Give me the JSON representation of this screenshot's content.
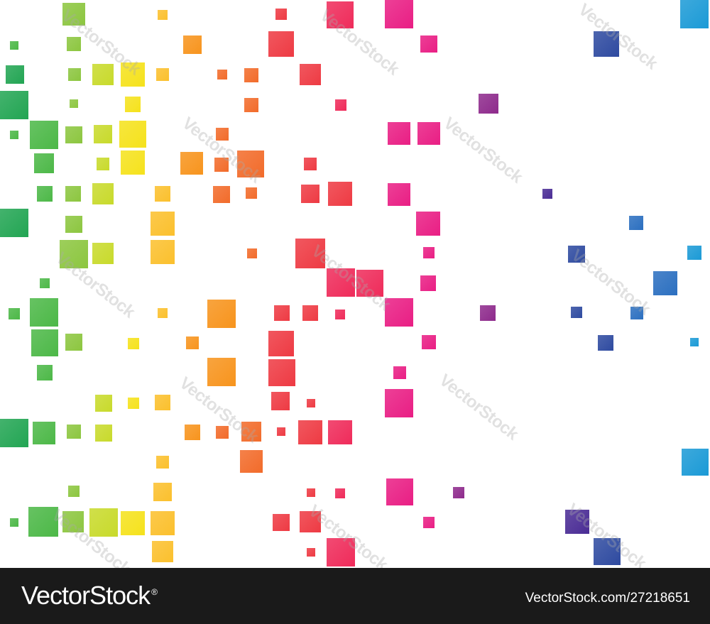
{
  "watermark": {
    "text": "VectorStock"
  },
  "footer": {
    "logo_text": "VectorStock",
    "logo_mark": "®",
    "url": "VectorStock.com/27218651",
    "background": "#1a1a1a"
  },
  "colors": {
    "green_dark": "#22a553",
    "green": "#4cb847",
    "green_light": "#8cc63f",
    "yellow_green": "#c8da2b",
    "yellow": "#f5e21c",
    "amber": "#fbc02d",
    "orange": "#f7941d",
    "orange_red": "#f26b2a",
    "red": "#ee3a43",
    "red_pink": "#ef2b5a",
    "magenta": "#e91e84",
    "purple": "#8e2a8c",
    "indigo": "#4a2c95",
    "blue_dark": "#2e4aa0",
    "blue": "#2b6fc0",
    "sky": "#1b9ad6"
  }
}
